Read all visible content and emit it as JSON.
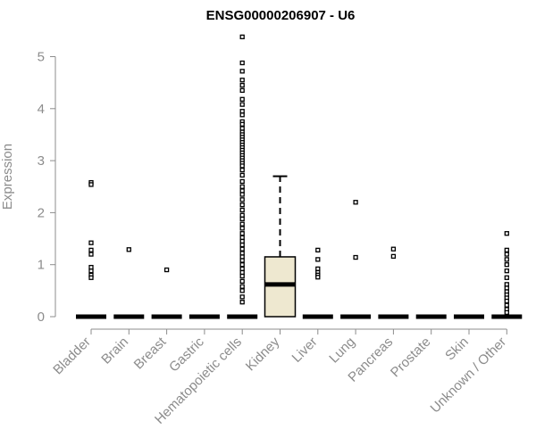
{
  "chart_data": {
    "type": "box",
    "title": "ENSG00000206907 - U6",
    "xlabel": "",
    "ylabel": "Expression",
    "ylim": [
      0,
      5.4
    ],
    "yticks": [
      0,
      1,
      2,
      3,
      4,
      5
    ],
    "categories": [
      "Bladder",
      "Brain",
      "Breast",
      "Gastric",
      "Hematopoietic cells",
      "Kidney",
      "Liver",
      "Lung",
      "Pancreas",
      "Prostate",
      "Skin",
      "Unknown / Other"
    ],
    "box_fill": "#eee8d0",
    "box_stroke": "#000000",
    "axis_color": "#8c8c8c",
    "boxes": [
      {
        "category": "Bladder",
        "q1": 0,
        "median": 0,
        "q3": 0,
        "whisker_low": 0,
        "whisker_high": 0,
        "outliers": [
          2.58,
          2.54,
          1.42,
          1.28,
          1.2,
          0.95,
          0.88,
          0.8,
          0.75
        ]
      },
      {
        "category": "Brain",
        "q1": 0,
        "median": 0,
        "q3": 0,
        "whisker_low": 0,
        "whisker_high": 0,
        "outliers": [
          1.29
        ]
      },
      {
        "category": "Breast",
        "q1": 0,
        "median": 0,
        "q3": 0,
        "whisker_low": 0,
        "whisker_high": 0,
        "outliers": [
          0.9
        ]
      },
      {
        "category": "Gastric",
        "q1": 0,
        "median": 0,
        "q3": 0,
        "whisker_low": 0,
        "whisker_high": 0,
        "outliers": []
      },
      {
        "category": "Hematopoietic cells",
        "q1": 0,
        "median": 0,
        "q3": 0,
        "whisker_low": 0,
        "whisker_high": 0,
        "outliers": [
          5.38,
          4.88,
          4.72,
          4.55,
          4.45,
          4.35,
          4.18,
          4.08,
          3.95,
          3.88,
          3.75,
          3.7,
          3.62,
          3.55,
          3.5,
          3.45,
          3.4,
          3.35,
          3.3,
          3.25,
          3.2,
          3.15,
          3.1,
          3.05,
          3.0,
          2.95,
          2.9,
          2.82,
          2.72,
          2.6,
          2.5,
          2.42,
          2.35,
          2.25,
          2.15,
          2.05,
          1.95,
          1.88,
          1.78,
          1.7,
          1.6,
          1.52,
          1.45,
          1.38,
          1.3,
          1.22,
          1.15,
          1.08,
          1.0,
          0.92,
          0.85,
          0.78,
          0.68,
          0.58,
          0.5,
          0.38,
          0.28
        ]
      },
      {
        "category": "Kidney",
        "q1": 0,
        "median": 0.62,
        "q3": 1.15,
        "whisker_low": 0,
        "whisker_high": 2.7,
        "outliers": []
      },
      {
        "category": "Liver",
        "q1": 0,
        "median": 0,
        "q3": 0,
        "whisker_low": 0,
        "whisker_high": 0,
        "outliers": [
          1.28,
          1.1,
          0.92,
          0.85,
          0.8,
          0.76
        ]
      },
      {
        "category": "Lung",
        "q1": 0,
        "median": 0,
        "q3": 0,
        "whisker_low": 0,
        "whisker_high": 0,
        "outliers": [
          2.2,
          1.14
        ]
      },
      {
        "category": "Pancreas",
        "q1": 0,
        "median": 0,
        "q3": 0,
        "whisker_low": 0,
        "whisker_high": 0,
        "outliers": [
          1.3,
          1.16
        ]
      },
      {
        "category": "Prostate",
        "q1": 0,
        "median": 0,
        "q3": 0,
        "whisker_low": 0,
        "whisker_high": 0,
        "outliers": []
      },
      {
        "category": "Skin",
        "q1": 0,
        "median": 0,
        "q3": 0,
        "whisker_low": 0,
        "whisker_high": 0,
        "outliers": []
      },
      {
        "category": "Unknown / Other",
        "q1": 0,
        "median": 0,
        "q3": 0,
        "whisker_low": 0,
        "whisker_high": 0,
        "outliers": [
          1.6,
          1.28,
          1.2,
          1.1,
          1.0,
          0.88,
          0.75,
          0.62,
          0.55,
          0.48,
          0.42,
          0.36,
          0.3,
          0.22,
          0.14,
          0.08
        ]
      }
    ]
  }
}
